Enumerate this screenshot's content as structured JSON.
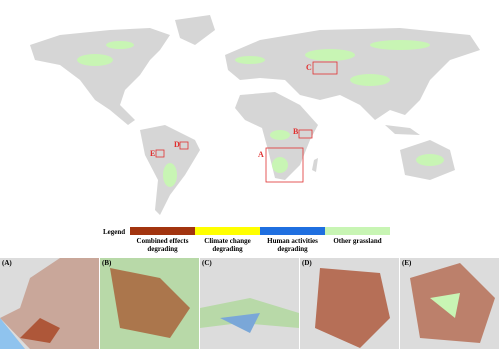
{
  "map": {
    "box_labels": [
      "A",
      "B",
      "C",
      "D",
      "E"
    ]
  },
  "legend": {
    "title": "Legend",
    "items": [
      {
        "label": "Combined effects degrading",
        "color": "#a2340f"
      },
      {
        "label": "Climate change degrading",
        "color": "#ffff00"
      },
      {
        "label": "Human activities degrading",
        "color": "#1f6fe0"
      },
      {
        "label": "Other grassland",
        "color": "#c8f5b4"
      }
    ]
  },
  "panels": [
    "(A)",
    "(B)",
    "(C)",
    "(D)",
    "(E)"
  ]
}
